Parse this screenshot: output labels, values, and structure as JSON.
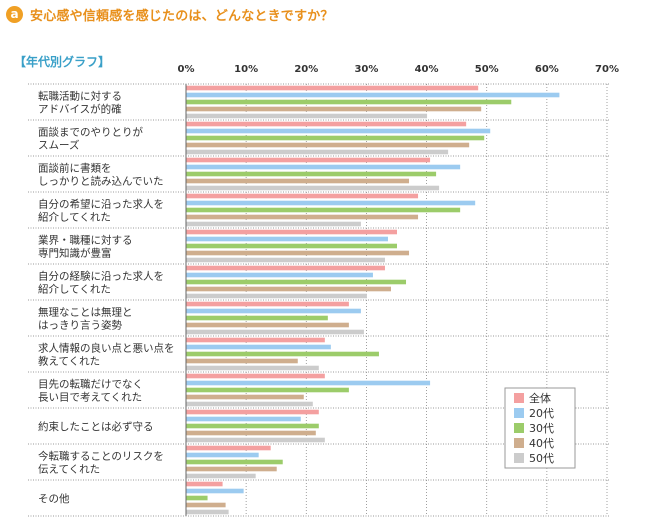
{
  "header": {
    "badge": "a",
    "title": "安心感や信頼感を感じたのは、どんなときですか？"
  },
  "chart_data": {
    "type": "bar",
    "orientation": "horizontal",
    "title": "安心感や信頼感を感じたのは、どんなときですか？",
    "subtitle": "【年代別グラフ】",
    "xlim": [
      0,
      70
    ],
    "ticks": [
      0,
      10,
      20,
      30,
      40,
      50,
      60,
      70
    ],
    "tick_suffix": "%",
    "grid": true,
    "legend_position": "bottom-right",
    "categories": [
      [
        "転職活動に対する",
        "アドバイスが的確"
      ],
      [
        "面談までのやりとりが",
        "スムーズ"
      ],
      [
        "面談前に書類を",
        "しっかりと読み込んでいた"
      ],
      [
        "自分の希望に沿った求人を",
        "紹介してくれた"
      ],
      [
        "業界・職種に対する",
        "専門知識が豊富"
      ],
      [
        "自分の経験に沿った求人を",
        "紹介してくれた"
      ],
      [
        "無理なことは無理と",
        "はっきり言う姿勢"
      ],
      [
        "求人情報の良い点と悪い点を",
        "教えてくれた"
      ],
      [
        "目先の転職だけでなく",
        "長い目で考えてくれた"
      ],
      [
        "約束したことは必ず守る"
      ],
      [
        "今転職することのリスクを",
        "伝えてくれた"
      ],
      [
        "その他"
      ]
    ],
    "series": [
      {
        "name": "全体",
        "color": "#f4a0a0",
        "values": [
          48.5,
          46.5,
          40.5,
          38.5,
          35,
          33,
          27,
          23,
          23,
          22,
          14,
          6
        ]
      },
      {
        "name": "20代",
        "color": "#9ccbf0",
        "values": [
          62,
          50.5,
          45.5,
          48,
          33.5,
          31,
          29,
          24,
          40.5,
          19,
          12,
          9.5
        ]
      },
      {
        "name": "30代",
        "color": "#9ccc6a",
        "values": [
          54,
          49.5,
          41.5,
          45.5,
          35,
          36.5,
          23.5,
          32,
          27,
          22,
          16,
          3.5
        ]
      },
      {
        "name": "40代",
        "color": "#cfae8e",
        "values": [
          49,
          47,
          37,
          38.5,
          37,
          34,
          27,
          18.5,
          19.5,
          21.5,
          15,
          6.5
        ]
      },
      {
        "name": "50代",
        "color": "#cccccc",
        "values": [
          40,
          43.5,
          42,
          29,
          33,
          30,
          29.5,
          22,
          21,
          23,
          11.5,
          7
        ]
      }
    ]
  }
}
